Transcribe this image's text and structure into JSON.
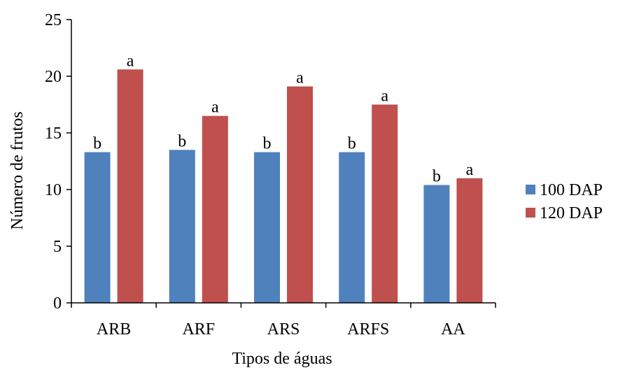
{
  "chart_data": {
    "type": "bar",
    "title": "",
    "xlabel": "Tipos de águas",
    "ylabel": "Número de frutos",
    "categories": [
      "ARB",
      "ARF",
      "ARS",
      "ARFS",
      "AA"
    ],
    "ylim": [
      0,
      25
    ],
    "yticks": [
      0,
      5,
      10,
      15,
      20,
      25
    ],
    "grid": false,
    "legend_position": "right",
    "series": [
      {
        "name": "100 DAP",
        "color": "#4F81BD",
        "values": [
          13.3,
          13.5,
          13.3,
          13.3,
          10.4
        ],
        "labels": [
          "b",
          "b",
          "b",
          "b",
          "b"
        ]
      },
      {
        "name": "120 DAP",
        "color": "#C0504D",
        "values": [
          20.6,
          16.5,
          19.1,
          17.5,
          11.0
        ],
        "labels": [
          "a",
          "a",
          "a",
          "a",
          "a"
        ]
      }
    ]
  }
}
